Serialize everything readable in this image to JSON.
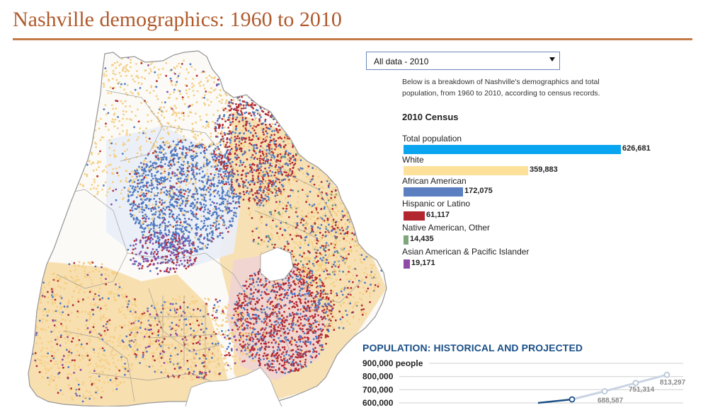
{
  "header": {
    "title": "Nashville demographics: 1960 to 2010"
  },
  "selector": {
    "value": "All data - 2010"
  },
  "intro_text": "Below is a breakdown of Nashville's demographics and total population, from 1960 to 2010, according to census records.",
  "census": {
    "title": "2010 Census",
    "max": 626681,
    "rows": [
      {
        "label": "Total population",
        "value": 626681,
        "display": "626,681",
        "color": "#0aa5f0"
      },
      {
        "label": "White",
        "value": 359883,
        "display": "359,883",
        "color": "#fde19a"
      },
      {
        "label": "African American",
        "value": 172075,
        "display": "172,075",
        "color": "#5b7fc0"
      },
      {
        "label": "Hispanic or Latino",
        "value": 61117,
        "display": "61,117",
        "color": "#b2262f"
      },
      {
        "label": "Native American, Other",
        "value": 14435,
        "display": "14,435",
        "color": "#7fa67c"
      },
      {
        "label": "Asian American & Pacific Islander",
        "value": 19171,
        "display": "19,171",
        "color": "#8e4aa5"
      }
    ]
  },
  "map": {
    "colors": {
      "white": "#f5cf84",
      "black": "#5079c0",
      "hispanic": "#b52a33",
      "other": "#6f9a6c",
      "asian": "#8a4aa0",
      "border": "#9a9a9a"
    }
  },
  "chart_data": {
    "type": "line",
    "title": "POPULATION: HISTORICAL AND PROJECTED",
    "ylabel": "",
    "y_ticks": [
      {
        "value": 900000,
        "label": "900,000 people"
      },
      {
        "value": 800000,
        "label": "800,000"
      },
      {
        "value": 700000,
        "label": "700,000"
      },
      {
        "value": 600000,
        "label": "600,000"
      }
    ],
    "ylim": [
      600000,
      900000
    ],
    "series": [
      {
        "values": [
          600000,
          626681
        ],
        "color": "#1a4f87"
      },
      {
        "values": [
          626681,
          688587,
          751314,
          813297
        ],
        "color": "#c9d4e3"
      }
    ],
    "data_labels": [
      "688,587",
      "751,314",
      "813,297"
    ],
    "projected_values": [
      688587,
      751314,
      813297
    ]
  }
}
